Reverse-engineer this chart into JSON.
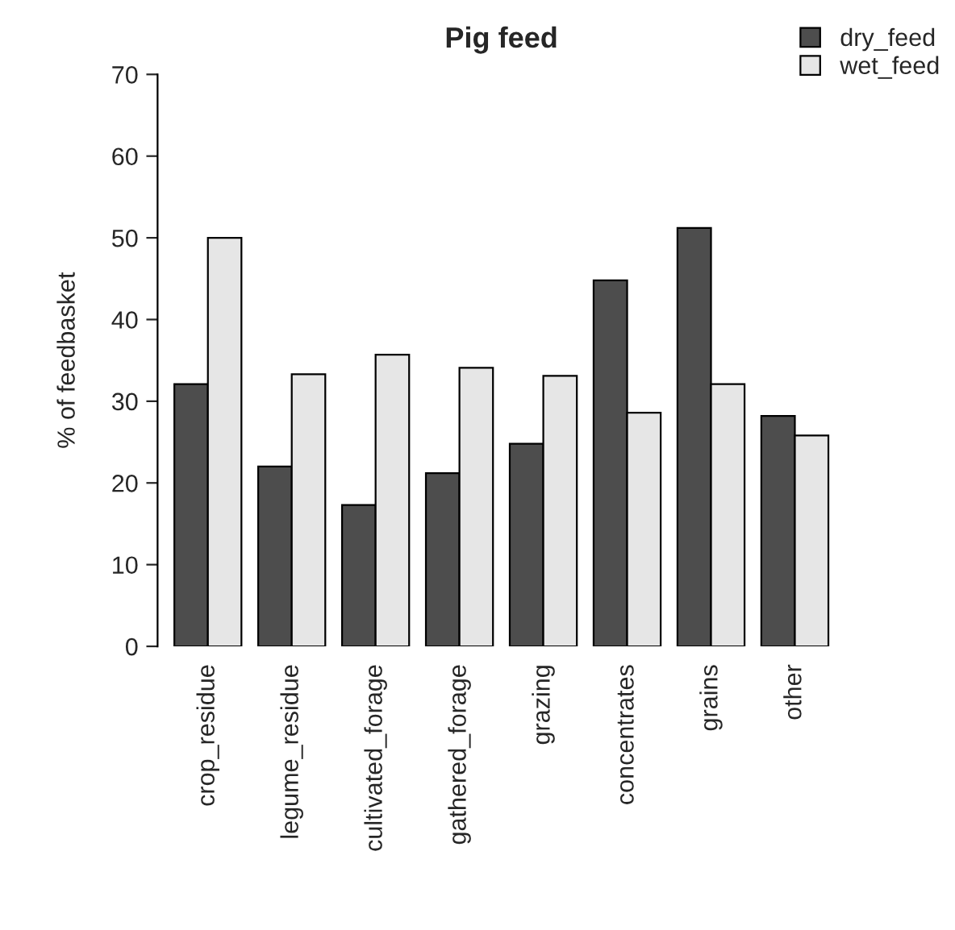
{
  "chart_data": {
    "type": "bar",
    "title": "Pig feed",
    "ylabel": "% of feedbasket",
    "categories": [
      "crop_residue",
      "legume_residue",
      "cultivated_forage",
      "gathered_forage",
      "grazing",
      "concentrates",
      "grains",
      "other"
    ],
    "series": [
      {
        "name": "dry_feed",
        "color": "#4d4d4d",
        "values": [
          32.1,
          22.0,
          17.3,
          21.2,
          24.8,
          44.8,
          51.2,
          28.2
        ]
      },
      {
        "name": "wet_feed",
        "color": "#e6e6e6",
        "values": [
          50.0,
          33.3,
          35.7,
          34.1,
          33.1,
          28.6,
          32.1,
          25.8
        ]
      }
    ],
    "ylim": [
      0,
      70
    ],
    "yticks": [
      0,
      10,
      20,
      30,
      40,
      50,
      60,
      70
    ],
    "legend": "top right",
    "grid": false
  }
}
